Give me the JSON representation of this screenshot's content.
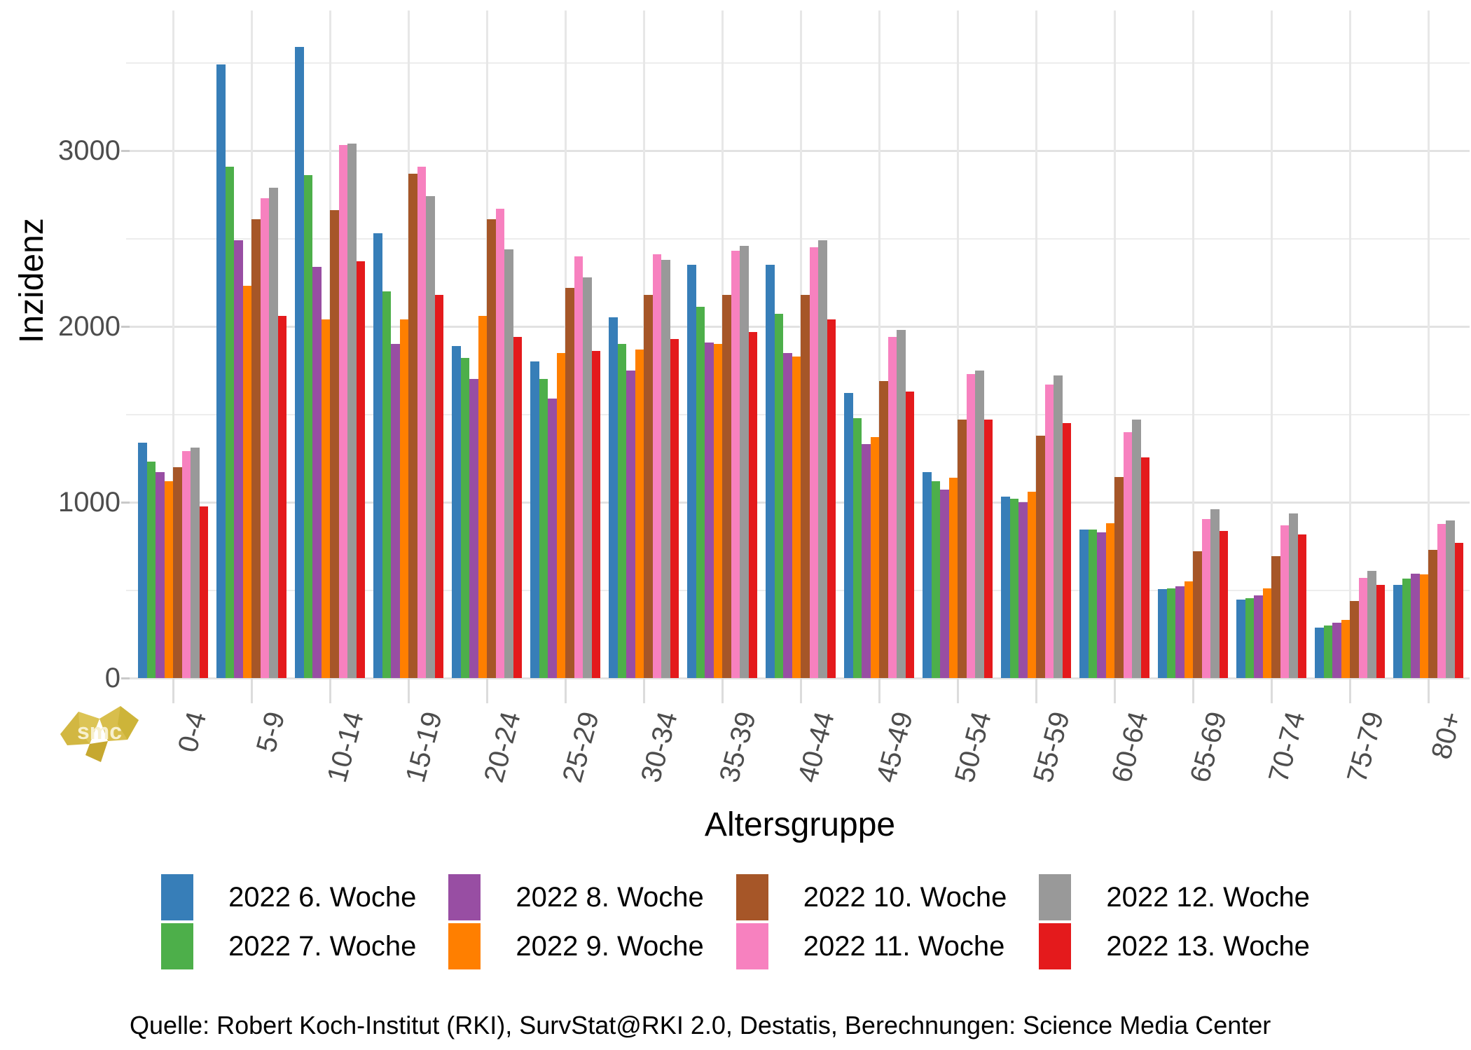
{
  "chart_data": {
    "type": "bar",
    "title": "",
    "xlabel": "Altersgruppe",
    "ylabel": "Inzidenz",
    "ylim": [
      0,
      3790
    ],
    "y_major_ticks": [
      0,
      1000,
      2000,
      3000
    ],
    "y_minor_ticks": [
      500,
      1500,
      2500,
      3500
    ],
    "grid": "on",
    "legend_position": "bottom",
    "categories": [
      "0-4",
      "5-9",
      "10-14",
      "15-19",
      "20-24",
      "25-29",
      "30-34",
      "35-39",
      "40-44",
      "45-49",
      "50-54",
      "55-59",
      "60-64",
      "65-69",
      "70-74",
      "75-79",
      "80+"
    ],
    "series": [
      {
        "name": "2022 6. Woche",
        "color": "#377EB8",
        "values": [
          1340,
          3490,
          3590,
          2530,
          1890,
          1800,
          2050,
          2350,
          2350,
          1620,
          1170,
          1030,
          845,
          505,
          445,
          285,
          530
        ]
      },
      {
        "name": "2022 7. Woche",
        "color": "#4DAF4A",
        "values": [
          1230,
          2910,
          2860,
          2200,
          1820,
          1700,
          1900,
          2110,
          2070,
          1480,
          1120,
          1020,
          845,
          510,
          455,
          300,
          565
        ]
      },
      {
        "name": "2022 8. Woche",
        "color": "#984EA3",
        "values": [
          1170,
          2490,
          2340,
          1900,
          1700,
          1590,
          1750,
          1910,
          1850,
          1330,
          1070,
          1000,
          830,
          520,
          470,
          315,
          595
        ]
      },
      {
        "name": "2022 9. Woche",
        "color": "#FF7F00",
        "values": [
          1120,
          2230,
          2040,
          2040,
          2060,
          1850,
          1870,
          1900,
          1830,
          1370,
          1140,
          1060,
          880,
          550,
          510,
          330,
          590
        ]
      },
      {
        "name": "2022 10. Woche",
        "color": "#A65628",
        "values": [
          1200,
          2610,
          2660,
          2870,
          2610,
          2220,
          2180,
          2180,
          2180,
          1690,
          1470,
          1380,
          1145,
          720,
          695,
          440,
          730
        ]
      },
      {
        "name": "2022 11. Woche",
        "color": "#F781BF",
        "values": [
          1290,
          2730,
          3030,
          2910,
          2670,
          2400,
          2410,
          2430,
          2450,
          1940,
          1730,
          1670,
          1400,
          905,
          870,
          570,
          875
        ]
      },
      {
        "name": "2022 12. Woche",
        "color": "#999999",
        "values": [
          1310,
          2790,
          3040,
          2740,
          2440,
          2280,
          2380,
          2460,
          2490,
          1980,
          1750,
          1720,
          1470,
          960,
          935,
          610,
          895
        ]
      },
      {
        "name": "2022 13. Woche",
        "color": "#E41A1C",
        "values": [
          975,
          2060,
          2370,
          2180,
          1940,
          1860,
          1930,
          1970,
          2040,
          1630,
          1470,
          1450,
          1255,
          835,
          815,
          530,
          770
        ]
      }
    ]
  },
  "footer": {
    "source": "Quelle: Robert Koch-Institut (RKI), SurvStat@RKI 2.0, Destatis, Berechnungen: Science Media Center"
  },
  "logo": {
    "text": "smc"
  }
}
